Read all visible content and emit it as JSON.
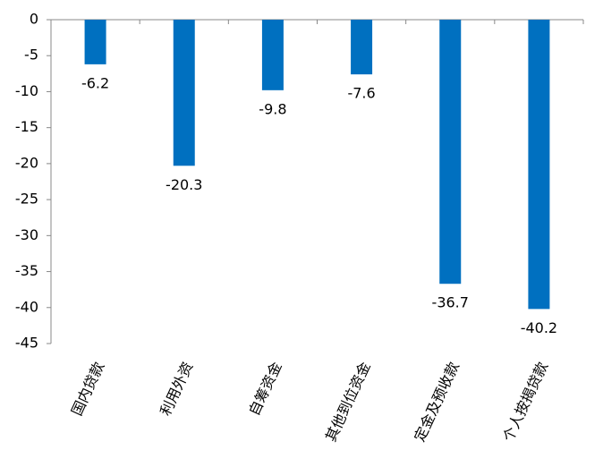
{
  "chart_data": {
    "type": "bar",
    "categories": [
      "国内贷款",
      "利用外资",
      "自筹资金",
      "其他到位资金",
      "定金及预收款",
      "个人按揭贷款"
    ],
    "values": [
      -6.2,
      -20.3,
      -9.8,
      -7.6,
      -36.7,
      -40.2
    ],
    "color": "#0070c0",
    "ylim": [
      -45,
      0
    ],
    "yticks": [
      0,
      -5,
      -10,
      -15,
      -20,
      -25,
      -30,
      -35,
      -40,
      -45
    ],
    "grid": false
  }
}
